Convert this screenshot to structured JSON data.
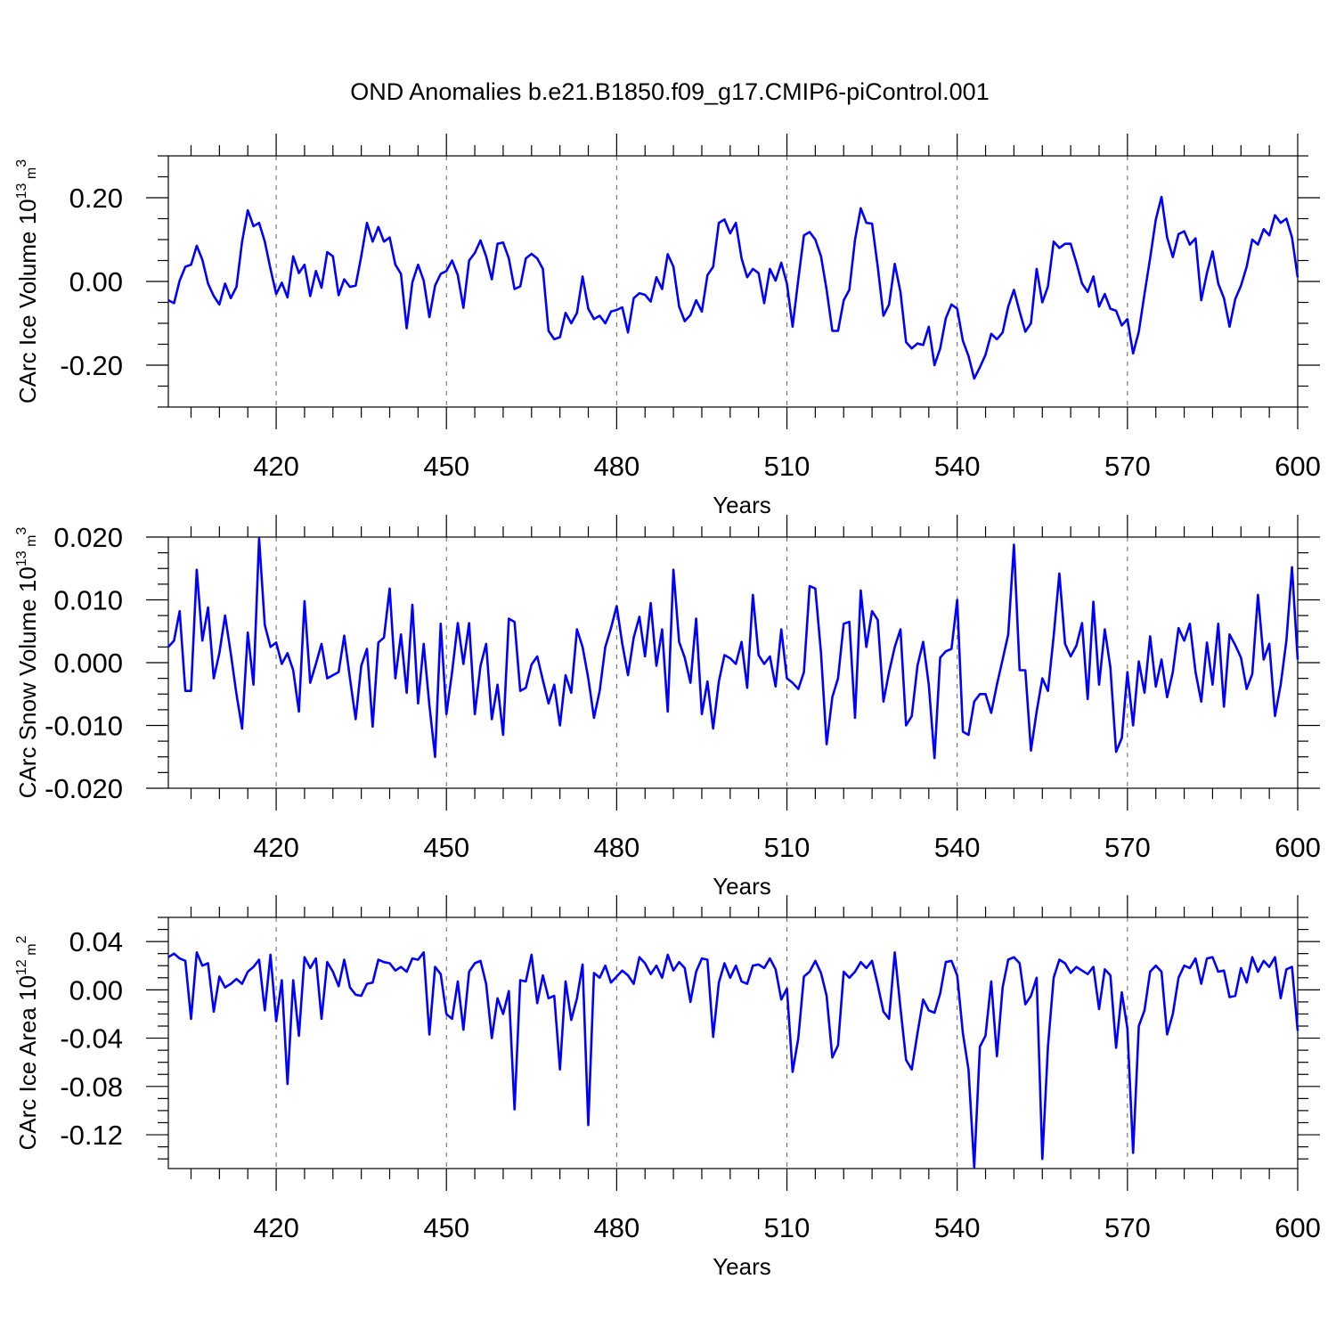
{
  "figure": {
    "title": "OND Anomalies b.e21.B1850.f09_g17.CMIP6-piControl.001"
  },
  "chart_data": [
    {
      "type": "line",
      "ylabel": "CArc Ice Volume",
      "ylabel_unit": "10^13 m^3",
      "ylabel_base": "10",
      "ylabel_exp": "13",
      "ylabel_unit_base": "m",
      "ylabel_unit_exp": "3",
      "xlabel": "Years",
      "xlim": [
        401,
        600
      ],
      "ylim": [
        -0.3,
        0.3
      ],
      "x_ticks": [
        420,
        450,
        480,
        510,
        540,
        570,
        600
      ],
      "y_ticks": [
        -0.2,
        0.0,
        0.2
      ],
      "y_tick_labels": [
        "-0.20",
        "0.00",
        "0.20"
      ],
      "y_minor_step": 0.05,
      "grid": "vertical dashed at x ticks",
      "color": "#0000ff",
      "x_start": 401,
      "values": [
        -0.045,
        -0.052,
        0.002,
        0.035,
        0.04,
        0.085,
        0.052,
        -0.005,
        -0.035,
        -0.055,
        -0.005,
        -0.04,
        -0.013,
        0.095,
        0.17,
        0.132,
        0.14,
        0.095,
        0.03,
        -0.03,
        -0.003,
        -0.038,
        0.06,
        0.02,
        0.04,
        -0.035,
        0.025,
        -0.015,
        0.07,
        0.06,
        -0.033,
        0.005,
        -0.013,
        -0.01,
        0.06,
        0.14,
        0.095,
        0.13,
        0.095,
        0.105,
        0.04,
        0.018,
        -0.112,
        -0.002,
        0.04,
        0.002,
        -0.085,
        -0.01,
        0.018,
        0.025,
        0.05,
        0.015,
        -0.063,
        0.05,
        0.068,
        0.098,
        0.06,
        0.005,
        0.09,
        0.093,
        0.055,
        -0.018,
        -0.012,
        0.055,
        0.066,
        0.055,
        0.03,
        -0.118,
        -0.138,
        -0.133,
        -0.075,
        -0.1,
        -0.075,
        0.012,
        -0.065,
        -0.09,
        -0.082,
        -0.1,
        -0.072,
        -0.068,
        -0.062,
        -0.122,
        -0.04,
        -0.028,
        -0.032,
        -0.048,
        0.01,
        -0.018,
        0.065,
        0.035,
        -0.06,
        -0.095,
        -0.08,
        -0.045,
        -0.072,
        0.015,
        0.035,
        0.14,
        0.148,
        0.115,
        0.14,
        0.055,
        0.01,
        0.03,
        0.02,
        -0.052,
        0.03,
        0.002,
        0.045,
        -0.005,
        -0.108,
        0.005,
        0.11,
        0.118,
        0.1,
        0.06,
        -0.02,
        -0.118,
        -0.118,
        -0.045,
        -0.02,
        0.1,
        0.175,
        0.14,
        0.138,
        0.035,
        -0.082,
        -0.055,
        0.042,
        -0.025,
        -0.145,
        -0.16,
        -0.148,
        -0.152,
        -0.108,
        -0.2,
        -0.16,
        -0.088,
        -0.055,
        -0.065,
        -0.142,
        -0.178,
        -0.232,
        -0.205,
        -0.175,
        -0.125,
        -0.138,
        -0.122,
        -0.06,
        -0.02,
        -0.072,
        -0.12,
        -0.1,
        0.03,
        -0.05,
        -0.012,
        0.095,
        0.08,
        0.09,
        0.09,
        0.045,
        -0.005,
        -0.025,
        0.012,
        -0.06,
        -0.03,
        -0.065,
        -0.07,
        -0.105,
        -0.09,
        -0.172,
        -0.12,
        -0.03,
        0.055,
        0.148,
        0.202,
        0.105,
        0.058,
        0.113,
        0.12,
        0.088,
        0.103,
        -0.045,
        0.02,
        0.072,
        -0.005,
        -0.04,
        -0.108,
        -0.042,
        -0.01,
        0.035,
        0.1,
        0.088,
        0.125,
        0.11,
        0.158,
        0.14,
        0.15,
        0.105,
        0.01
      ]
    },
    {
      "type": "line",
      "ylabel": "CArc Snow Volume",
      "ylabel_unit": "10^13 m^3",
      "ylabel_base": "10",
      "ylabel_exp": "13",
      "ylabel_unit_base": "m",
      "ylabel_unit_exp": "3",
      "xlabel": "Years",
      "xlim": [
        401,
        600
      ],
      "ylim": [
        -0.02,
        0.02
      ],
      "x_ticks": [
        420,
        450,
        480,
        510,
        540,
        570,
        600
      ],
      "y_ticks": [
        -0.02,
        -0.01,
        0.0,
        0.01,
        0.02
      ],
      "y_tick_labels": [
        "-0.020",
        "-0.010",
        "0.000",
        "0.010",
        "0.020"
      ],
      "y_minor_step": 0.0025,
      "grid": "vertical dashed at x ticks",
      "color": "#0000ff",
      "x_start": 401,
      "values": [
        0.0025,
        0.0035,
        0.0082,
        -0.0045,
        -0.0045,
        0.0148,
        0.0035,
        0.0088,
        -0.0025,
        0.0015,
        0.0075,
        0.0015,
        -0.005,
        -0.0105,
        0.0048,
        -0.0035,
        0.0198,
        0.006,
        0.0025,
        0.0032,
        -0.0002,
        0.0015,
        -0.0012,
        -0.0078,
        0.0098,
        -0.0032,
        -0.0002,
        0.003,
        -0.0025,
        -0.002,
        -0.0015,
        0.0043,
        -0.0025,
        -0.009,
        -0.0005,
        0.0022,
        -0.0102,
        0.0032,
        0.004,
        0.0118,
        -0.0025,
        0.0045,
        -0.0048,
        0.0092,
        -0.0065,
        0.003,
        -0.0068,
        -0.015,
        0.0062,
        -0.0082,
        -0.0015,
        0.0063,
        -0.0002,
        0.0063,
        -0.0082,
        -0.0005,
        0.003,
        -0.009,
        -0.0035,
        -0.0115,
        0.007,
        0.0065,
        -0.0045,
        -0.004,
        -0.0003,
        0.001,
        -0.0028,
        -0.0065,
        -0.0035,
        -0.01,
        -0.002,
        -0.0048,
        0.0053,
        0.0025,
        -0.0025,
        -0.0088,
        -0.0045,
        0.0025,
        0.0055,
        0.009,
        0.003,
        -0.002,
        0.004,
        0.0073,
        0.001,
        0.0095,
        -0.0005,
        0.0053,
        -0.0078,
        0.0148,
        0.0033,
        0.0008,
        -0.0032,
        0.007,
        -0.0082,
        -0.003,
        -0.0105,
        -0.003,
        0.0012,
        0.0007,
        -0.0002,
        0.0033,
        -0.004,
        0.0108,
        0.0012,
        -0.0002,
        0.001,
        -0.0038,
        0.0053,
        -0.0025,
        -0.0032,
        -0.0042,
        -0.0015,
        0.0122,
        0.0118,
        0.0015,
        -0.013,
        -0.0055,
        -0.0025,
        0.0062,
        0.0065,
        -0.0088,
        0.0115,
        0.0025,
        0.0082,
        0.0068,
        -0.0062,
        -0.0015,
        0.0025,
        0.0053,
        -0.01,
        -0.0085,
        -0.0005,
        0.0033,
        -0.0035,
        -0.0152,
        0.0008,
        0.0018,
        0.0022,
        0.01,
        -0.011,
        -0.0115,
        -0.0062,
        -0.005,
        -0.005,
        -0.008,
        -0.0035,
        0.0005,
        0.0045,
        0.0188,
        -0.0012,
        -0.0012,
        -0.014,
        -0.0078,
        -0.0025,
        -0.0045,
        0.0042,
        0.0142,
        0.003,
        0.001,
        0.0027,
        0.0063,
        -0.0058,
        0.0097,
        -0.0035,
        0.0053,
        -0.0008,
        -0.0142,
        -0.012,
        -0.0015,
        -0.01,
        0.0002,
        -0.0048,
        0.0042,
        -0.0038,
        0.0005,
        -0.0055,
        -0.0015,
        0.0055,
        0.0035,
        0.0062,
        -0.0015,
        -0.0062,
        0.0032,
        -0.0035,
        0.0062,
        -0.007,
        0.0045,
        0.0028,
        0.0008,
        -0.0042,
        -0.0018,
        0.0108,
        0.0005,
        0.003,
        -0.0085,
        -0.0035,
        0.0035,
        0.0152,
        0.0005
      ]
    },
    {
      "type": "line",
      "ylabel": "CArc Ice Area",
      "ylabel_unit": "10^12 m^2",
      "ylabel_base": "10",
      "ylabel_exp": "12",
      "ylabel_unit_base": "m",
      "ylabel_unit_exp": "2",
      "xlabel": "Years",
      "xlim": [
        401,
        600
      ],
      "ylim": [
        -0.148,
        0.06
      ],
      "x_ticks": [
        420,
        450,
        480,
        510,
        540,
        570,
        600
      ],
      "y_ticks": [
        -0.12,
        -0.08,
        -0.04,
        0.0,
        0.04
      ],
      "y_tick_labels": [
        "-0.12",
        "-0.08",
        "-0.04",
        "0.00",
        "0.04"
      ],
      "y_minor_step": 0.01,
      "grid": "vertical dashed at x ticks",
      "color": "#0000ff",
      "x_start": 401,
      "values": [
        0.027,
        0.03,
        0.026,
        0.024,
        -0.024,
        0.031,
        0.02,
        0.022,
        -0.018,
        0.011,
        0.002,
        0.005,
        0.009,
        0.005,
        0.015,
        0.019,
        0.025,
        -0.017,
        0.029,
        -0.026,
        0.008,
        -0.078,
        0.008,
        -0.038,
        0.027,
        0.018,
        0.026,
        -0.024,
        0.023,
        0.015,
        0.003,
        0.025,
        0.002,
        -0.004,
        -0.005,
        0.005,
        0.006,
        0.025,
        0.023,
        0.022,
        0.016,
        0.019,
        0.015,
        0.026,
        0.025,
        0.031,
        -0.037,
        0.019,
        0.013,
        -0.02,
        -0.024,
        0.007,
        -0.033,
        0.015,
        0.022,
        0.024,
        0.005,
        -0.04,
        -0.007,
        -0.02,
        -0.001,
        -0.099,
        0.008,
        0.007,
        0.029,
        -0.011,
        0.012,
        -0.007,
        -0.005,
        -0.066,
        0.007,
        -0.025,
        -0.007,
        0.021,
        -0.112,
        0.014,
        0.01,
        0.02,
        0.006,
        0.011,
        0.016,
        0.012,
        0.005,
        0.027,
        0.022,
        0.013,
        0.02,
        0.01,
        0.029,
        0.016,
        0.023,
        0.018,
        -0.01,
        0.015,
        0.026,
        0.025,
        -0.039,
        0.006,
        0.022,
        0.01,
        0.02,
        0.007,
        0.005,
        0.02,
        0.021,
        0.018,
        0.026,
        0.017,
        -0.008,
        0.001,
        -0.068,
        -0.04,
        0.011,
        0.015,
        0.024,
        0.014,
        -0.005,
        -0.056,
        -0.046,
        0.015,
        0.01,
        0.015,
        0.023,
        0.018,
        0.024,
        0.004,
        -0.018,
        -0.024,
        0.031,
        -0.015,
        -0.058,
        -0.066,
        -0.036,
        -0.008,
        -0.017,
        -0.019,
        -0.003,
        0.023,
        0.024,
        0.012,
        -0.036,
        -0.066,
        -0.147,
        -0.047,
        -0.038,
        0.007,
        -0.055,
        0.002,
        0.025,
        0.027,
        0.022,
        -0.012,
        -0.005,
        0.01,
        -0.14,
        -0.047,
        0.01,
        0.025,
        0.022,
        0.014,
        0.019,
        0.016,
        0.013,
        0.019,
        -0.016,
        0.017,
        0.012,
        -0.048,
        -0.002,
        -0.032,
        -0.135,
        -0.03,
        -0.017,
        0.015,
        0.02,
        0.015,
        -0.037,
        -0.02,
        0.01,
        0.02,
        0.018,
        0.026,
        0.005,
        0.026,
        0.027,
        0.015,
        0.016,
        -0.006,
        -0.005,
        0.018,
        0.006,
        0.027,
        0.015,
        0.024,
        0.019,
        0.027,
        -0.007,
        0.017,
        0.019,
        -0.034
      ]
    }
  ]
}
